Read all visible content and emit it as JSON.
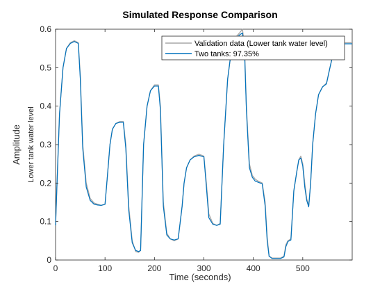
{
  "chart_data": {
    "type": "line",
    "title": "Simulated Response Comparison",
    "xlabel": "Time (seconds)",
    "ylabel": "Amplitude",
    "ylabel_secondary": "Lower tank water level",
    "xlim": [
      0,
      600
    ],
    "ylim": [
      0,
      0.6
    ],
    "xticks": [
      0,
      100,
      200,
      300,
      400,
      500
    ],
    "yticks": [
      0,
      0.1,
      0.2,
      0.3,
      0.4,
      0.5,
      0.6
    ],
    "xtick_labels": [
      "0",
      "100",
      "200",
      "300",
      "400",
      "500"
    ],
    "ytick_labels": [
      "0",
      "0.1",
      "0.2",
      "0.3",
      "0.4",
      "0.5",
      "0.6"
    ],
    "grid": false,
    "legend_position": "top-right",
    "series": [
      {
        "name": "Validation data (Lower tank water level)",
        "color": "#a6a6a6",
        "x": [
          0,
          3,
          8,
          15,
          22,
          30,
          38,
          46,
          50,
          55,
          62,
          70,
          78,
          85,
          92,
          100,
          105,
          110,
          115,
          122,
          130,
          137,
          142,
          148,
          155,
          162,
          168,
          172,
          178,
          185,
          192,
          200,
          208,
          212,
          218,
          225,
          232,
          240,
          248,
          256,
          260,
          265,
          272,
          280,
          290,
          300,
          305,
          310,
          318,
          326,
          333,
          340,
          348,
          356,
          365,
          372,
          378,
          382,
          386,
          392,
          398,
          404,
          410,
          418,
          424,
          428,
          432,
          438,
          445,
          455,
          462,
          466,
          470,
          476,
          482,
          488,
          492,
          496,
          500,
          504,
          508,
          512,
          516,
          520,
          526,
          532,
          540,
          548,
          555,
          562,
          568,
          575,
          582,
          590,
          600
        ],
        "y": [
          0.09,
          0.2,
          0.38,
          0.5,
          0.55,
          0.565,
          0.57,
          0.565,
          0.48,
          0.3,
          0.2,
          0.16,
          0.148,
          0.145,
          0.142,
          0.145,
          0.22,
          0.3,
          0.34,
          0.355,
          0.36,
          0.36,
          0.3,
          0.14,
          0.05,
          0.022,
          0.02,
          0.025,
          0.3,
          0.4,
          0.44,
          0.455,
          0.455,
          0.4,
          0.15,
          0.07,
          0.055,
          0.05,
          0.055,
          0.14,
          0.2,
          0.24,
          0.26,
          0.27,
          0.275,
          0.27,
          0.2,
          0.12,
          0.095,
          0.09,
          0.095,
          0.3,
          0.47,
          0.55,
          0.58,
          0.59,
          0.6,
          0.56,
          0.4,
          0.25,
          0.22,
          0.21,
          0.205,
          0.2,
          0.15,
          0.06,
          0.01,
          0.005,
          0.005,
          0.005,
          0.01,
          0.04,
          0.05,
          0.055,
          0.18,
          0.23,
          0.26,
          0.27,
          0.25,
          0.2,
          0.16,
          0.14,
          0.2,
          0.3,
          0.38,
          0.43,
          0.45,
          0.46,
          0.5,
          0.54,
          0.56,
          0.565,
          0.565,
          0.565,
          0.565
        ]
      },
      {
        "name": "Two tanks: 97.35%",
        "color": "#0072bd",
        "x": [
          0,
          3,
          8,
          15,
          22,
          30,
          38,
          46,
          50,
          55,
          62,
          70,
          78,
          85,
          92,
          100,
          105,
          110,
          115,
          122,
          130,
          137,
          142,
          148,
          155,
          162,
          168,
          172,
          178,
          185,
          192,
          200,
          208,
          212,
          218,
          225,
          232,
          240,
          248,
          256,
          260,
          265,
          272,
          280,
          290,
          300,
          305,
          310,
          318,
          326,
          333,
          340,
          348,
          356,
          365,
          372,
          378,
          382,
          386,
          392,
          398,
          404,
          410,
          418,
          424,
          428,
          432,
          438,
          445,
          455,
          462,
          466,
          470,
          476,
          482,
          488,
          492,
          496,
          500,
          504,
          508,
          512,
          516,
          520,
          526,
          532,
          540,
          548,
          555,
          562,
          568,
          575,
          582,
          590,
          600
        ],
        "y": [
          0.09,
          0.2,
          0.38,
          0.5,
          0.55,
          0.563,
          0.568,
          0.563,
          0.47,
          0.29,
          0.19,
          0.155,
          0.145,
          0.143,
          0.142,
          0.145,
          0.22,
          0.3,
          0.34,
          0.355,
          0.358,
          0.358,
          0.29,
          0.13,
          0.045,
          0.025,
          0.022,
          0.025,
          0.3,
          0.4,
          0.44,
          0.452,
          0.452,
          0.39,
          0.14,
          0.065,
          0.055,
          0.052,
          0.055,
          0.14,
          0.2,
          0.24,
          0.26,
          0.268,
          0.272,
          0.268,
          0.19,
          0.11,
          0.093,
          0.09,
          0.093,
          0.3,
          0.47,
          0.55,
          0.575,
          0.585,
          0.59,
          0.55,
          0.39,
          0.24,
          0.215,
          0.205,
          0.202,
          0.198,
          0.14,
          0.05,
          0.01,
          0.004,
          0.004,
          0.004,
          0.008,
          0.035,
          0.048,
          0.052,
          0.18,
          0.23,
          0.26,
          0.265,
          0.245,
          0.19,
          0.155,
          0.138,
          0.2,
          0.3,
          0.38,
          0.43,
          0.45,
          0.458,
          0.5,
          0.54,
          0.558,
          0.562,
          0.562,
          0.562,
          0.562
        ]
      }
    ]
  }
}
